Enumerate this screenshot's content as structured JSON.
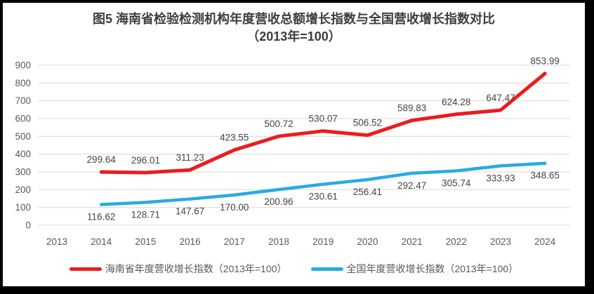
{
  "figure": {
    "title_line1": "图5  海南省检验检测机构年度营收总额增长指数与全国营收增长指数对比",
    "title_line2": "（2013年=100）"
  },
  "chart_data": {
    "type": "line",
    "title": "图5 海南省检验检测机构年度营收总额增长指数与全国营收增长指数对比（2013年=100）",
    "categories": [
      "2013",
      "2014",
      "2015",
      "2016",
      "2017",
      "2018",
      "2019",
      "2020",
      "2021",
      "2022",
      "2023",
      "2024"
    ],
    "yticks": [
      0,
      100,
      200,
      300,
      400,
      500,
      600,
      700,
      800,
      900
    ],
    "ylim": [
      0,
      900
    ],
    "grid": true,
    "legend_position": "bottom",
    "series": [
      {
        "name": "海南省年度营收增长指数（2013年=100）",
        "color": "#ec1c1c",
        "line_width": 5,
        "labels_position": "above",
        "values": [
          null,
          299.64,
          296.01,
          311.23,
          423.55,
          500.72,
          530.07,
          506.52,
          589.83,
          624.28,
          647.47,
          853.99
        ]
      },
      {
        "name": "全国年度营收增长指数（2013年=100）",
        "color": "#29abe2",
        "line_width": 4.5,
        "labels_position": "below",
        "values": [
          null,
          116.62,
          128.71,
          147.67,
          170.0,
          200.96,
          230.61,
          256.41,
          292.47,
          305.74,
          333.93,
          348.65
        ]
      }
    ]
  },
  "colors": {
    "gridline": "#d9d9d9",
    "tick_text": "#595959",
    "label_text": "#444444",
    "title_text": "#3d3d3d",
    "background": "#ffffff",
    "frame": "#000000"
  }
}
